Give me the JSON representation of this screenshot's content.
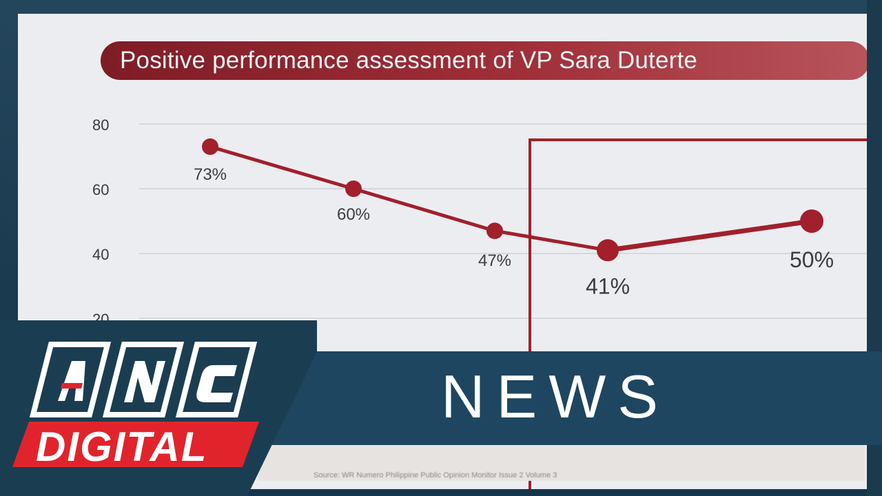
{
  "chart_data": {
    "type": "line",
    "title": "Positive performance assessment of VP Sara Duterte",
    "x": [
      1,
      2,
      3,
      4,
      5
    ],
    "values": [
      73,
      60,
      47,
      41,
      50
    ],
    "data_labels": [
      "73%",
      "60%",
      "47%",
      "41%",
      "50%"
    ],
    "yticks": [
      "80",
      "60",
      "40",
      "20"
    ],
    "ytick_values": [
      80,
      60,
      40,
      20
    ],
    "ylim": [
      0,
      80
    ],
    "grid": true,
    "highlight": "last two points boxed",
    "series_color": "#a1202c"
  },
  "caption": {
    "source": "Source: WR Numero Philippine Public Opinion Monitor Issue 2 Volume 3"
  },
  "brand": {
    "logo_text": "ANC",
    "sub_text": "DIGITAL",
    "section": "NEWS",
    "accent_color": "#e1242b",
    "band_color": "#1e4660"
  }
}
